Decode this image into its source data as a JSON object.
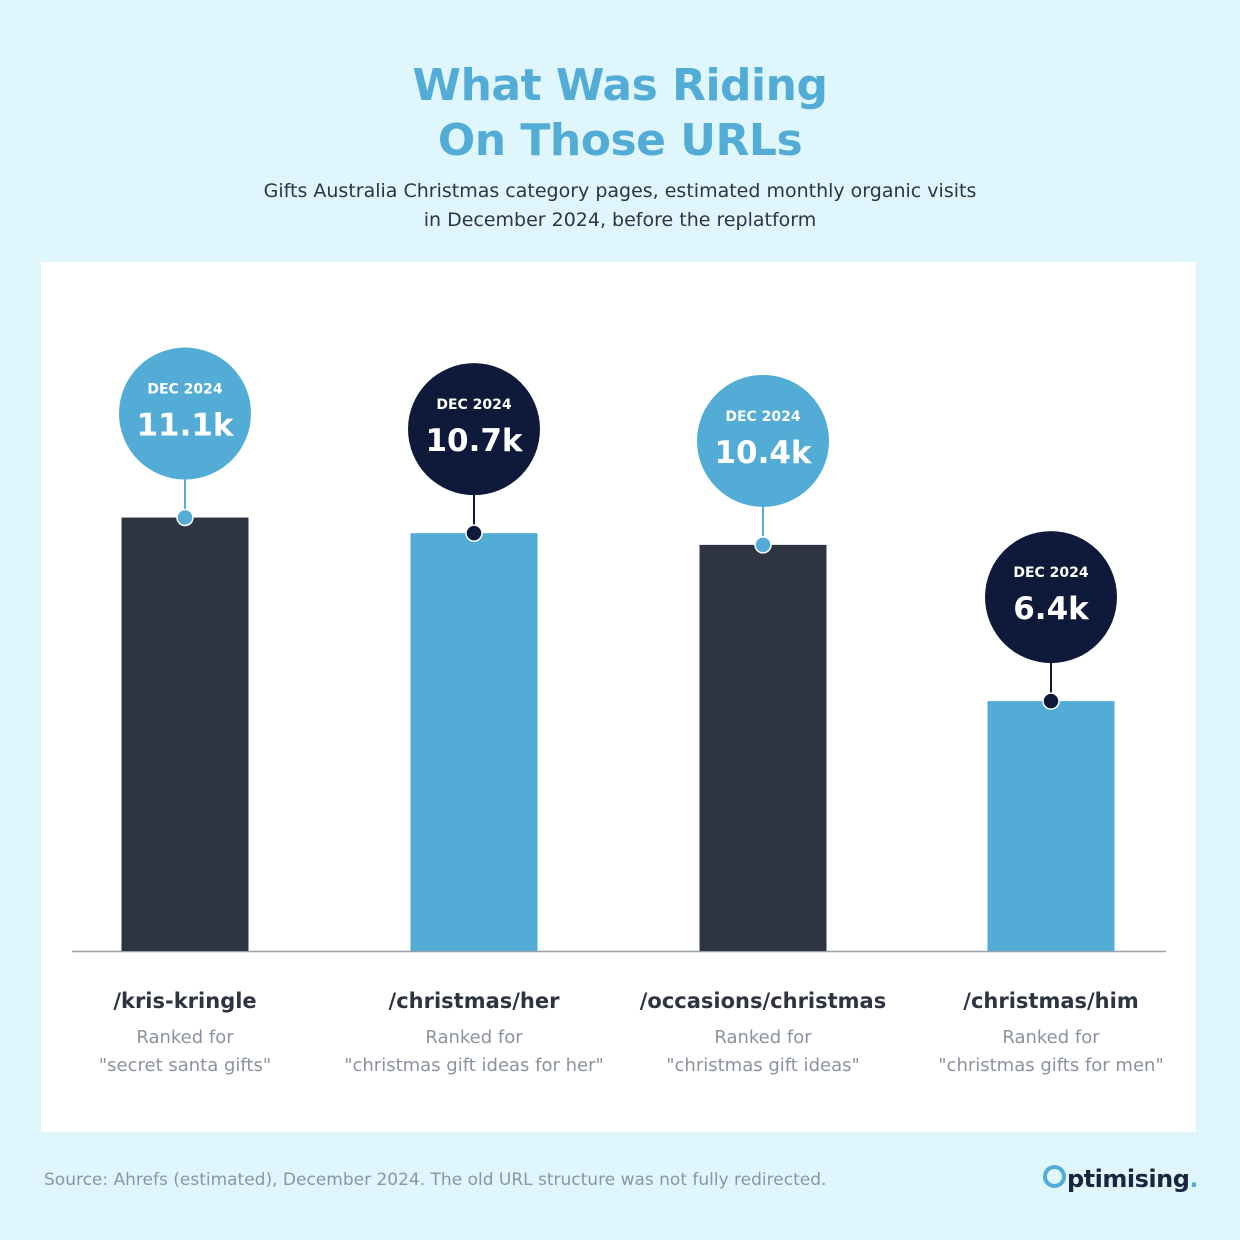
{
  "title_line1": "What Was Riding",
  "title_line2": "On Those URLs",
  "subtitle_line1": "Gifts Australia Christmas category pages, estimated monthly organic visits",
  "subtitle_line2": "in December 2024, before the replatform",
  "source": "Source: Ahrefs (estimated), December 2024. The old URL structure was not fully redirected.",
  "logo": {
    "wordmark": "ptimising",
    "dot": "."
  },
  "colors": {
    "dark_bar": "#2f3442",
    "light_bar": "#52acd5",
    "navy_bubble": "#0f1a3a",
    "blue_bubble": "#52acd5"
  },
  "chart_data": {
    "type": "bar",
    "ylim": [
      0,
      12.0
    ],
    "grid": false,
    "bubble_label": "DEC 2024",
    "categories": [
      "/kris-kringle",
      "/christmas/her",
      "/occasions/christmas",
      "/christmas/him"
    ],
    "values": [
      11.1,
      10.7,
      10.4,
      6.4
    ],
    "value_labels": [
      "11.1k",
      "10.7k",
      "10.4k",
      "6.4k"
    ],
    "ranked_for_label": "Ranked for",
    "ranked_keywords": [
      "\"secret santa gifts\"",
      "\"christmas gift ideas for her\"",
      "\"christmas gift ideas\"",
      "\"christmas gifts for men\""
    ],
    "bar_colors": [
      "#2f3442",
      "#52acd5",
      "#2f3442",
      "#52acd5"
    ],
    "bubble_colors": [
      "#52acd5",
      "#0f1a3a",
      "#52acd5",
      "#0f1a3a"
    ]
  }
}
